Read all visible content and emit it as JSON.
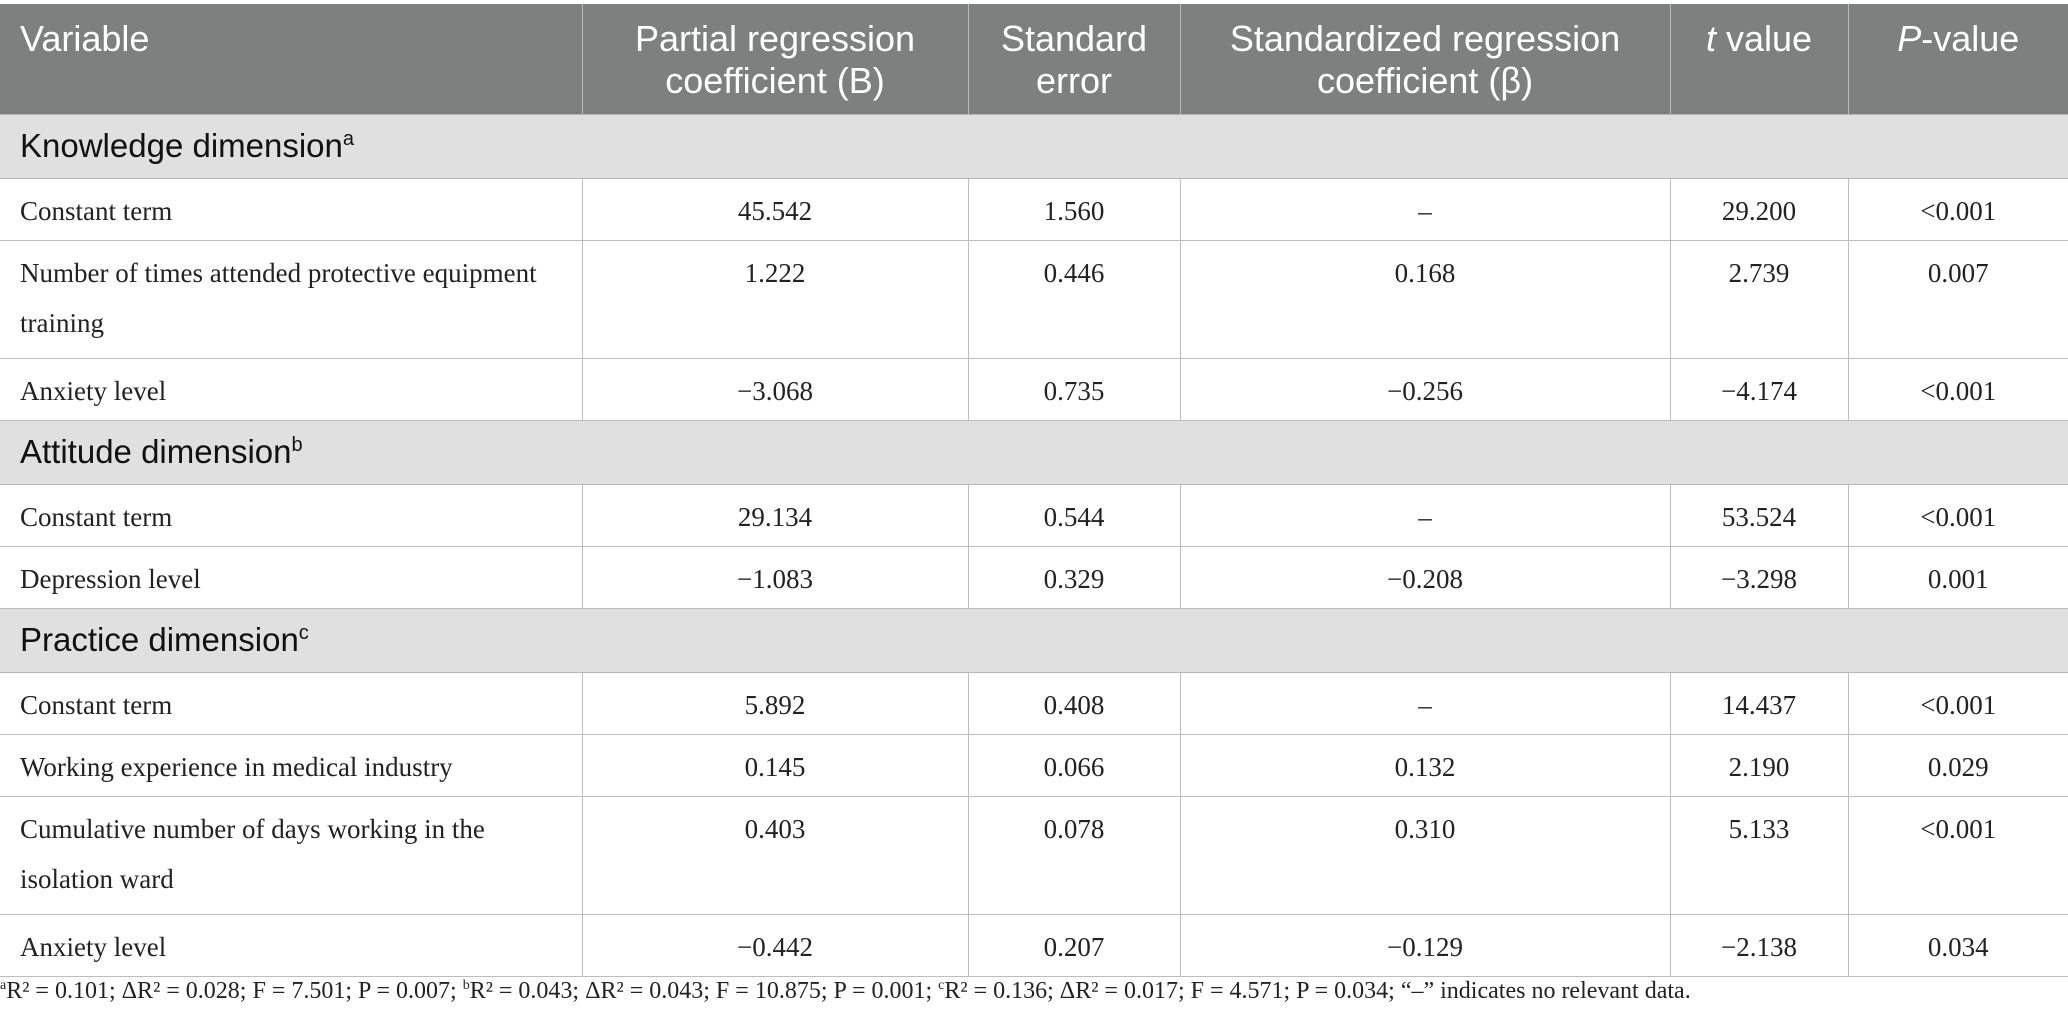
{
  "headers": {
    "variable": "Variable",
    "b": "Partial regression coefficient (B)",
    "se": "Standard error",
    "beta": "Standardized regression coefficient (β)",
    "t_italic": "t",
    "t_rest": " value",
    "p_italic": "P",
    "p_rest": "-value"
  },
  "sections": [
    {
      "title": "Knowledge dimension",
      "note": "a",
      "rows": [
        {
          "variable": "Constant term",
          "b": "45.542",
          "se": "1.560",
          "beta": "–",
          "t": "29.200",
          "p": "<0.001"
        },
        {
          "variable": "Number of times attended protective equipment training",
          "b": "1.222",
          "se": "0.446",
          "beta": "0.168",
          "t": "2.739",
          "p": "0.007"
        },
        {
          "variable": "Anxiety level",
          "b": "−3.068",
          "se": "0.735",
          "beta": "−0.256",
          "t": "−4.174",
          "p": "<0.001"
        }
      ]
    },
    {
      "title": "Attitude dimension",
      "note": "b",
      "rows": [
        {
          "variable": "Constant term",
          "b": "29.134",
          "se": "0.544",
          "beta": "–",
          "t": "53.524",
          "p": "<0.001"
        },
        {
          "variable": "Depression level",
          "b": "−1.083",
          "se": "0.329",
          "beta": "−0.208",
          "t": "−3.298",
          "p": "0.001"
        }
      ]
    },
    {
      "title": "Practice dimension",
      "note": "c",
      "rows": [
        {
          "variable": "Constant term",
          "b": "5.892",
          "se": "0.408",
          "beta": "–",
          "t": "14.437",
          "p": "<0.001"
        },
        {
          "variable": "Working experience in medical industry",
          "b": "0.145",
          "se": "0.066",
          "beta": "0.132",
          "t": "2.190",
          "p": "0.029"
        },
        {
          "variable": "Cumulative number of days working in the isolation ward",
          "b": "0.403",
          "se": "0.078",
          "beta": "0.310",
          "t": "5.133",
          "p": "<0.001"
        },
        {
          "variable": "Anxiety level",
          "b": "−0.442",
          "se": "0.207",
          "beta": "−0.129",
          "t": "−2.138",
          "p": "0.034"
        }
      ]
    }
  ],
  "footnote": {
    "a_mark": "a",
    "a_text": "R² = 0.101; ΔR² = 0.028; F = 7.501; P = 0.007; ",
    "b_mark": "b",
    "b_text": "R² = 0.043; ΔR² = 0.043; F = 10.875; P = 0.001; ",
    "c_mark": "c",
    "c_text": "R² = 0.136; ΔR² = 0.017; F = 4.571; P = 0.034; “–” indicates no relevant data."
  },
  "colors": {
    "header_bg": "#7e807f",
    "section_bg": "#e0e0e0",
    "border": "#bdbdbd"
  }
}
